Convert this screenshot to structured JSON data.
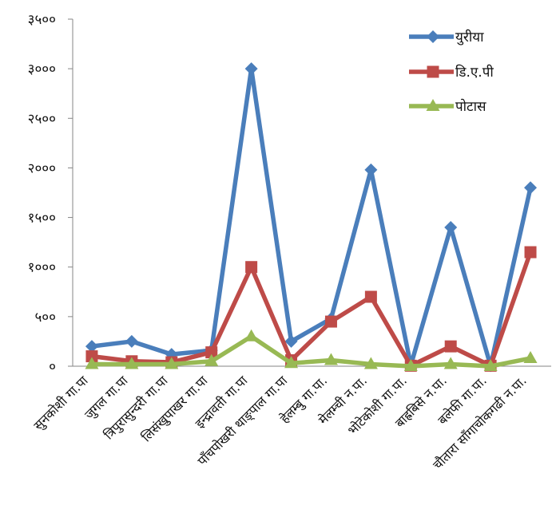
{
  "chart_data": {
    "type": "line",
    "categories": [
      "सुनकोशी गा.पा",
      "जुगल गा.पा",
      "त्रिपुरासुन्दरी गा.पा",
      "लिसंखुपाखर गा.पा",
      "इन्द्रावती गा.पा",
      "पाँचपोखरी थाङ्पाल गा.पा",
      "हेलम्बु गा.पा.",
      "मेलम्ची न.पा.",
      "भोटेकोशी गा.पा.",
      "बाह्रबिसे न.पा.",
      "बलेफी गा.पा.",
      "चौतारा साँगाचोकगढी न.पा."
    ],
    "series": [
      {
        "name": "युरीया",
        "color": "#4A7EBB",
        "marker": "diamond",
        "values": [
          200,
          250,
          120,
          160,
          3000,
          250,
          480,
          1980,
          10,
          1400,
          5,
          1800
        ]
      },
      {
        "name": "डि.ए.पी",
        "color": "#BE4B48",
        "marker": "square",
        "values": [
          100,
          50,
          40,
          140,
          1000,
          60,
          450,
          700,
          5,
          200,
          5,
          1150
        ]
      },
      {
        "name": "पोटास",
        "color": "#98B954",
        "marker": "triangle",
        "values": [
          20,
          20,
          20,
          50,
          300,
          30,
          60,
          20,
          0,
          20,
          0,
          80
        ]
      }
    ],
    "y_ticks": [
      "०",
      "५००",
      "१०००",
      "१५००",
      "२०००",
      "२५००",
      "३०००",
      "३५००"
    ],
    "ylim": [
      0,
      3500
    ],
    "grid": false,
    "legend_position": "top-right"
  }
}
